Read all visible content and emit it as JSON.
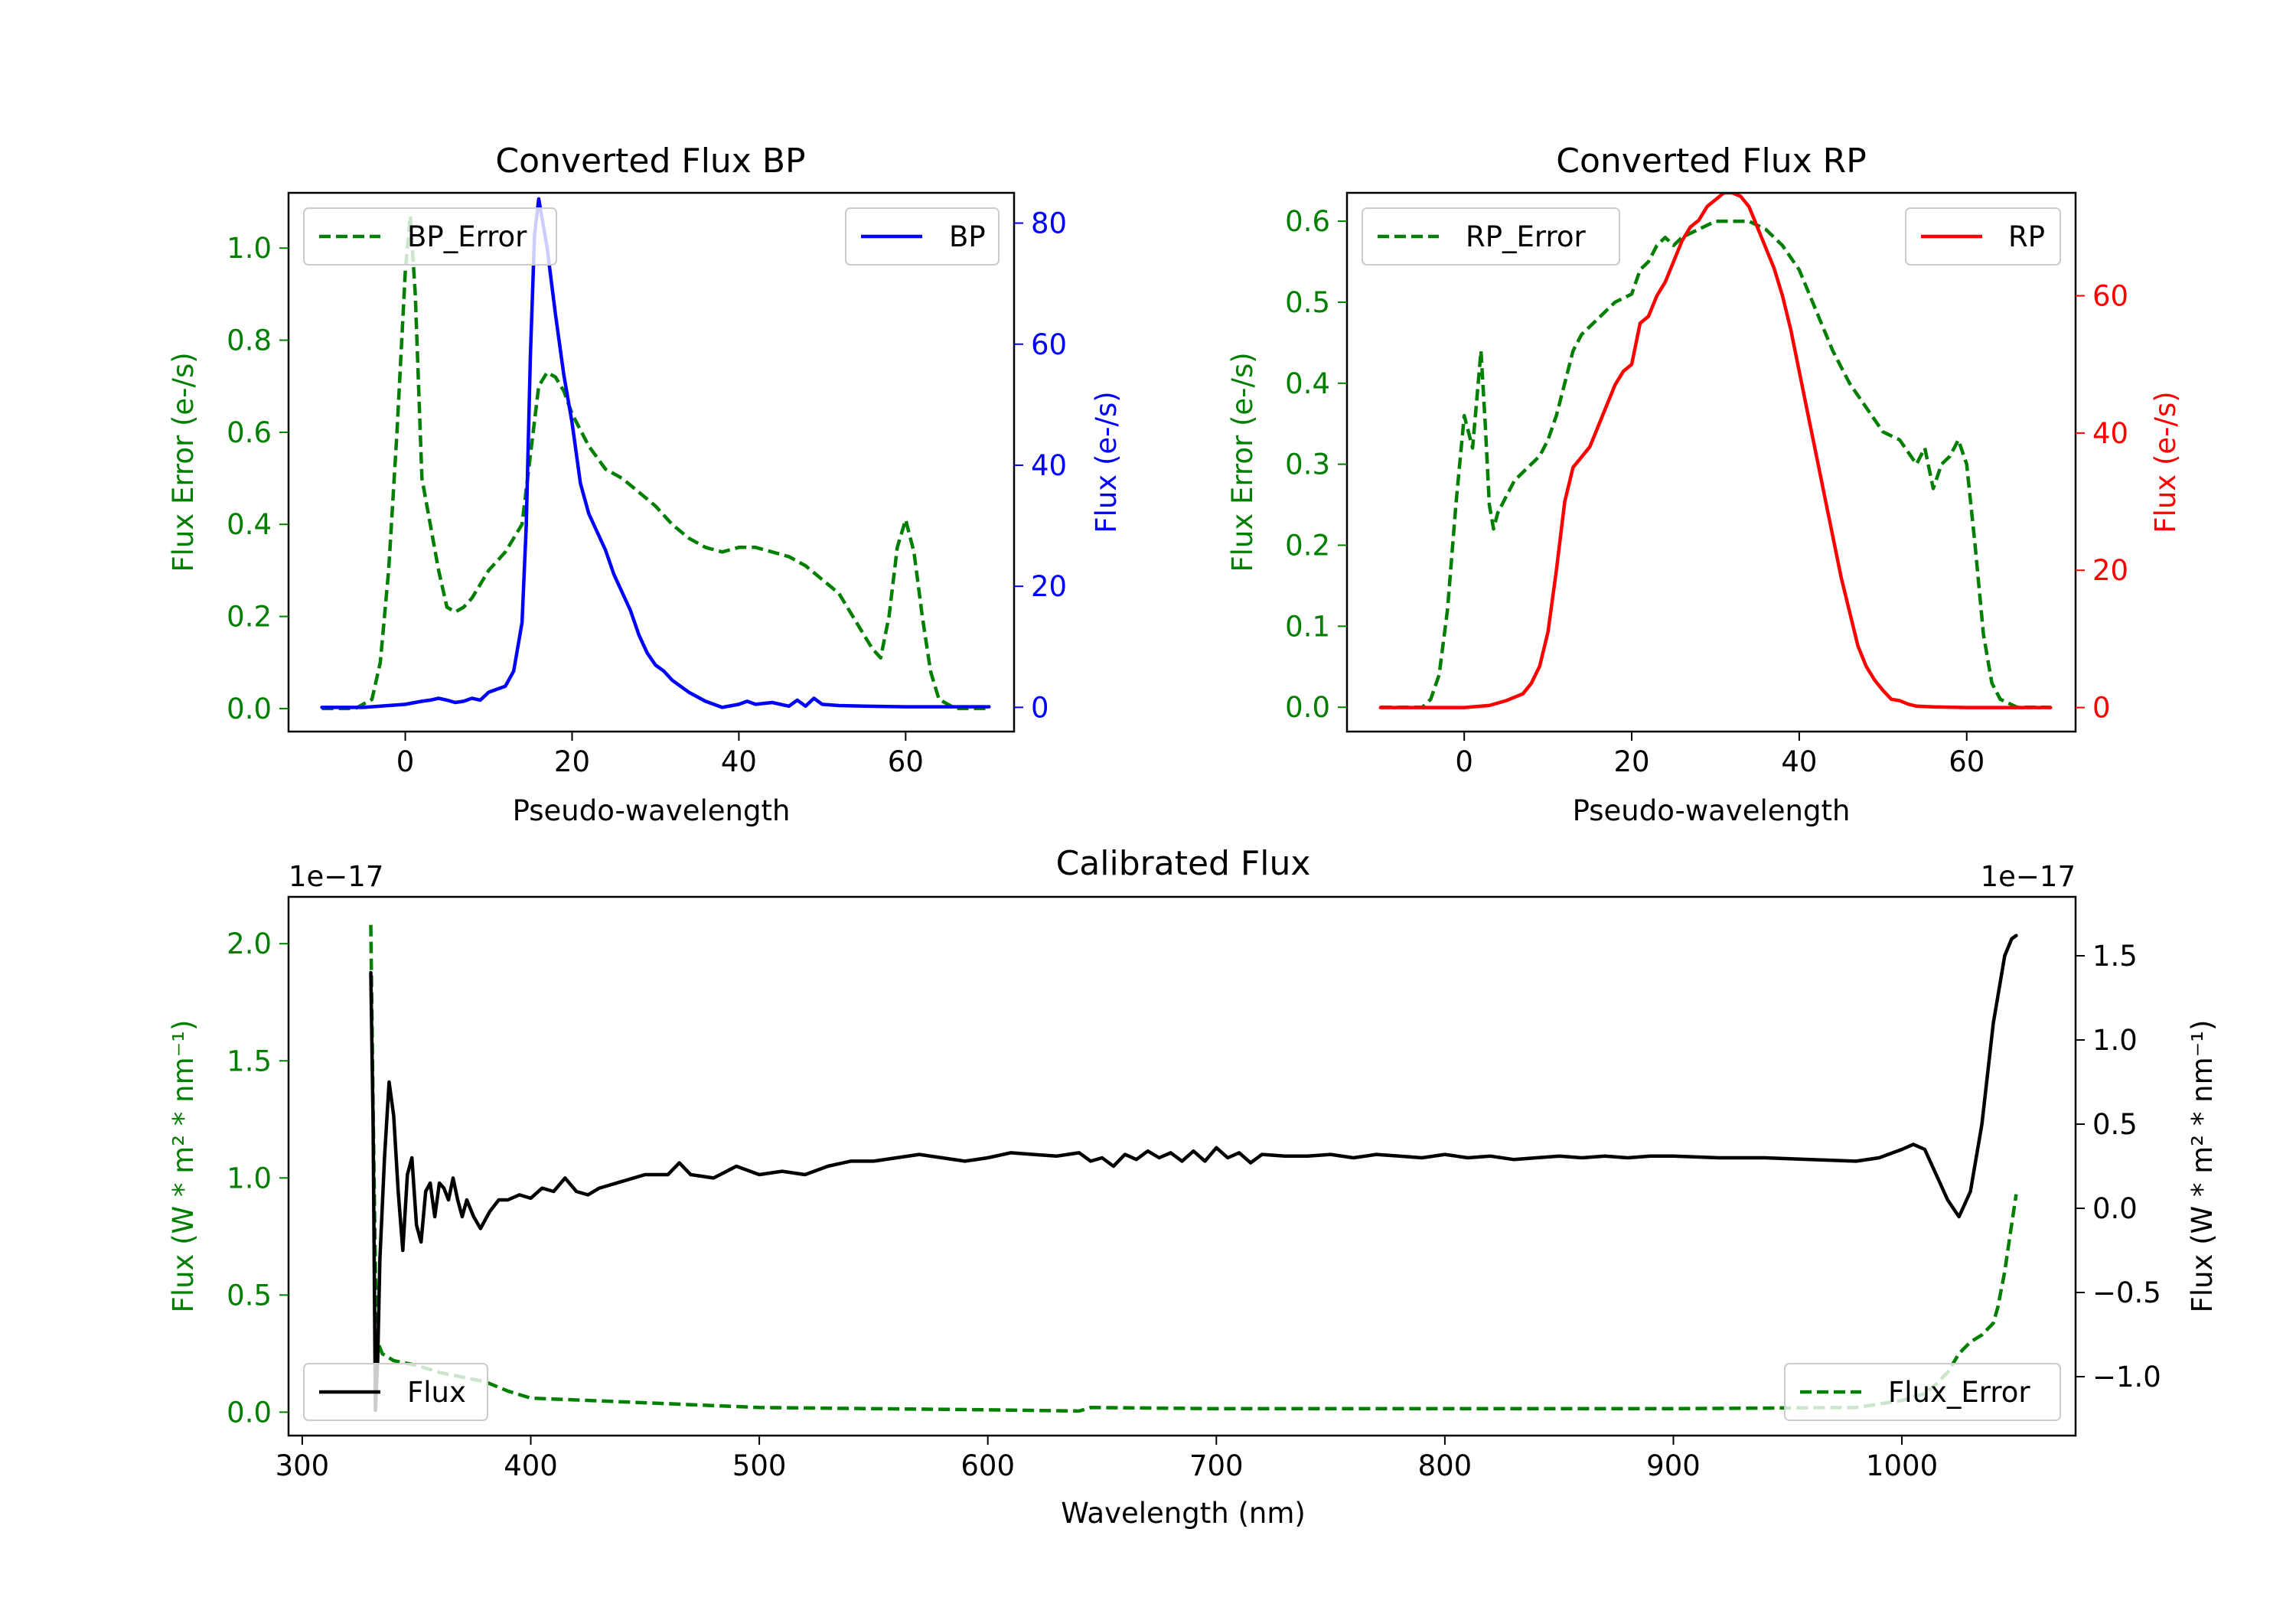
{
  "colors": {
    "error": "#007f00",
    "bp": "#0000ff",
    "rp": "#ff0000",
    "flux": "#000000"
  },
  "chart_data": [
    {
      "type": "line",
      "title": "Converted Flux BP",
      "xlabel": "Pseudo-wavelength",
      "ylabel_left": "Flux Error (e-/s)",
      "ylabel_right": "Flux (e-/s)",
      "xlim": [
        -14,
        73
      ],
      "ylim_left": [
        -0.05,
        1.12
      ],
      "ylim_right": [
        -4,
        85
      ],
      "xticks": [
        "0",
        "20",
        "40",
        "60"
      ],
      "yticks_left": [
        "0.0",
        "0.2",
        "0.4",
        "0.6",
        "0.8",
        "1.0"
      ],
      "yticks_right": [
        "0",
        "20",
        "40",
        "60",
        "80"
      ],
      "legend_left": "BP_Error",
      "legend_right": "BP",
      "series": [
        {
          "name": "BP_Error",
          "axis": "left",
          "style": "dashed",
          "x": [
            -10,
            -6,
            -4,
            -3,
            -2,
            -1,
            0,
            0.6,
            1.2,
            2,
            3,
            4,
            5,
            6,
            7,
            8,
            9,
            10,
            12,
            14,
            15,
            16,
            17,
            18,
            19,
            20,
            22,
            24,
            26,
            28,
            30,
            32,
            34,
            36,
            38,
            40,
            42,
            44,
            46,
            48,
            50,
            52,
            54,
            56,
            57,
            58,
            59,
            60,
            61,
            62,
            63,
            64,
            66,
            70
          ],
          "values": [
            0.0,
            0.0,
            0.02,
            0.1,
            0.3,
            0.6,
            0.95,
            1.07,
            0.9,
            0.5,
            0.4,
            0.3,
            0.22,
            0.21,
            0.22,
            0.24,
            0.27,
            0.3,
            0.34,
            0.4,
            0.55,
            0.7,
            0.73,
            0.72,
            0.69,
            0.64,
            0.57,
            0.52,
            0.5,
            0.47,
            0.44,
            0.4,
            0.37,
            0.35,
            0.34,
            0.35,
            0.35,
            0.34,
            0.33,
            0.31,
            0.28,
            0.25,
            0.19,
            0.13,
            0.11,
            0.2,
            0.35,
            0.41,
            0.34,
            0.2,
            0.08,
            0.02,
            0.0,
            0.0
          ]
        },
        {
          "name": "BP",
          "axis": "right",
          "style": "solid",
          "x": [
            -10,
            -5,
            0,
            2,
            3,
            4,
            5,
            6,
            7,
            8,
            9,
            10,
            11,
            12,
            13,
            14,
            14.5,
            15,
            15.5,
            16,
            17,
            18,
            19,
            20,
            21,
            22,
            23,
            24,
            25,
            26,
            27,
            28,
            29,
            30,
            31,
            32,
            34,
            36,
            38,
            40,
            41,
            42,
            44,
            46,
            47,
            48,
            49,
            50,
            52,
            55,
            60,
            65,
            70
          ],
          "values": [
            0,
            0,
            0.5,
            1,
            1.2,
            1.5,
            1.2,
            0.8,
            1,
            1.5,
            1.2,
            2.5,
            3,
            3.5,
            6,
            14,
            30,
            58,
            78,
            84,
            76,
            65,
            55,
            47,
            37,
            32,
            29,
            26,
            22,
            19,
            16,
            12,
            9,
            7,
            6,
            4.5,
            2.5,
            1,
            0,
            0.5,
            1,
            0.5,
            0.8,
            0.2,
            1.2,
            0.2,
            1.5,
            0.5,
            0.3,
            0.2,
            0.1,
            0.1,
            0.1
          ]
        }
      ]
    },
    {
      "type": "line",
      "title": "Converted Flux RP",
      "xlabel": "Pseudo-wavelength",
      "ylabel_left": "Flux Error (e-/s)",
      "ylabel_right": "Flux (e-/s)",
      "xlim": [
        -14,
        73
      ],
      "ylim_left": [
        -0.03,
        0.635
      ],
      "ylim_right": [
        -3.5,
        75
      ],
      "xticks": [
        "0",
        "20",
        "40",
        "60"
      ],
      "yticks_left": [
        "0.0",
        "0.1",
        "0.2",
        "0.3",
        "0.4",
        "0.5",
        "0.6"
      ],
      "yticks_right": [
        "0",
        "20",
        "40",
        "60"
      ],
      "legend_left": "RP_Error",
      "legend_right": "RP",
      "series": [
        {
          "name": "RP_Error",
          "axis": "left",
          "style": "dashed",
          "x": [
            -10,
            -5,
            -4,
            -3,
            -2,
            -1,
            0,
            0.5,
            1,
            1.5,
            2,
            2.5,
            3,
            3.5,
            4,
            5,
            6,
            7,
            8,
            9,
            10,
            11,
            12,
            13,
            14,
            16,
            18,
            20,
            21,
            22,
            23,
            24,
            25,
            26,
            28,
            30,
            32,
            34,
            36,
            38,
            40,
            42,
            44,
            46,
            48,
            50,
            52,
            54,
            55,
            56,
            57,
            58,
            59,
            60,
            61,
            62,
            63,
            64,
            66,
            70
          ],
          "values": [
            0.0,
            0.0,
            0.01,
            0.04,
            0.12,
            0.25,
            0.36,
            0.34,
            0.32,
            0.38,
            0.44,
            0.35,
            0.25,
            0.22,
            0.24,
            0.26,
            0.28,
            0.29,
            0.3,
            0.31,
            0.33,
            0.36,
            0.4,
            0.44,
            0.46,
            0.48,
            0.5,
            0.51,
            0.54,
            0.55,
            0.57,
            0.58,
            0.57,
            0.58,
            0.59,
            0.6,
            0.6,
            0.6,
            0.59,
            0.57,
            0.54,
            0.49,
            0.44,
            0.4,
            0.37,
            0.34,
            0.33,
            0.3,
            0.32,
            0.27,
            0.3,
            0.31,
            0.33,
            0.3,
            0.2,
            0.09,
            0.03,
            0.01,
            0.0,
            0.0
          ]
        },
        {
          "name": "RP",
          "axis": "right",
          "style": "solid",
          "x": [
            -10,
            -5,
            0,
            3,
            5,
            7,
            8,
            9,
            10,
            11,
            12,
            13,
            14,
            15,
            16,
            17,
            18,
            19,
            20,
            21,
            22,
            23,
            24,
            25,
            26,
            27,
            28,
            29,
            30,
            31,
            32,
            33,
            34,
            35,
            36,
            37,
            38,
            39,
            40,
            41,
            42,
            43,
            44,
            45,
            46,
            47,
            48,
            49,
            50,
            51,
            52,
            53,
            54,
            56,
            60,
            65,
            70
          ],
          "values": [
            0,
            0,
            0,
            0.3,
            1,
            2,
            3.5,
            6,
            11,
            20,
            30,
            35,
            36.5,
            38,
            41,
            44,
            47,
            49,
            50,
            56,
            57,
            60,
            62,
            65,
            68,
            70,
            71,
            73,
            74,
            75,
            75,
            74.5,
            73,
            70,
            67,
            64,
            60,
            55,
            49,
            43,
            37,
            31,
            25,
            19,
            14,
            9,
            6,
            4,
            2.5,
            1.2,
            1,
            0.5,
            0.2,
            0.1,
            0,
            0,
            0
          ]
        }
      ]
    },
    {
      "type": "line",
      "title": "Calibrated Flux",
      "xlabel": "Wavelength (nm)",
      "ylabel_left": "Flux (W * m² * nm⁻¹)",
      "ylabel_right": "Flux (W * m² * nm⁻¹)",
      "offset_left": "1e−17",
      "offset_right": "1e−17",
      "xlim": [
        294,
        1076
      ],
      "ylim_left": [
        -0.1,
        2.2
      ],
      "ylim_right": [
        -1.35,
        1.85
      ],
      "xticks": [
        "300",
        "400",
        "500",
        "600",
        "700",
        "800",
        "900",
        "1000"
      ],
      "yticks_left": [
        "0.0",
        "0.5",
        "1.0",
        "1.5",
        "2.0"
      ],
      "yticks_right": [
        "−1.0",
        "−0.5",
        "0.0",
        "0.5",
        "1.0",
        "1.5"
      ],
      "legend_left": "Flux",
      "legend_right": "Flux_Error",
      "series": [
        {
          "name": "Flux_Error",
          "axis": "left",
          "style": "dashed",
          "x": [
            330,
            331,
            332,
            333,
            335,
            340,
            350,
            360,
            370,
            380,
            390,
            400,
            450,
            500,
            600,
            640,
            645,
            700,
            900,
            980,
            1000,
            1010,
            1015,
            1020,
            1025,
            1030,
            1035,
            1040,
            1042,
            1045,
            1048,
            1050
          ],
          "values": [
            2.08,
            1.3,
            0.6,
            0.3,
            0.25,
            0.22,
            0.2,
            0.17,
            0.15,
            0.13,
            0.09,
            0.06,
            0.04,
            0.02,
            0.01,
            0.005,
            0.02,
            0.015,
            0.015,
            0.02,
            0.05,
            0.08,
            0.12,
            0.17,
            0.25,
            0.3,
            0.33,
            0.38,
            0.45,
            0.6,
            0.8,
            0.93
          ]
        },
        {
          "name": "Flux",
          "axis": "right",
          "style": "solid",
          "x": [
            330,
            331,
            332,
            333,
            334,
            336,
            338,
            340,
            342,
            344,
            346,
            348,
            350,
            352,
            354,
            356,
            358,
            360,
            362,
            364,
            366,
            368,
            370,
            372,
            375,
            378,
            382,
            386,
            390,
            395,
            400,
            405,
            410,
            415,
            420,
            425,
            430,
            440,
            450,
            460,
            465,
            470,
            480,
            490,
            500,
            510,
            520,
            530,
            540,
            550,
            560,
            570,
            580,
            590,
            600,
            610,
            620,
            630,
            640,
            645,
            650,
            655,
            660,
            665,
            670,
            675,
            680,
            685,
            690,
            695,
            700,
            705,
            710,
            715,
            720,
            730,
            740,
            750,
            760,
            770,
            780,
            790,
            800,
            810,
            820,
            830,
            840,
            850,
            860,
            870,
            880,
            890,
            900,
            920,
            940,
            960,
            980,
            990,
            1000,
            1005,
            1010,
            1015,
            1020,
            1025,
            1030,
            1035,
            1040,
            1045,
            1048,
            1050
          ],
          "values": [
            1.4,
            0.5,
            -1.2,
            -0.9,
            -0.3,
            0.3,
            0.75,
            0.55,
            0.1,
            -0.25,
            0.2,
            0.3,
            -0.1,
            -0.2,
            0.1,
            0.15,
            -0.05,
            0.15,
            0.12,
            0.05,
            0.18,
            0.05,
            -0.05,
            0.05,
            -0.05,
            -0.12,
            -0.02,
            0.05,
            0.05,
            0.08,
            0.06,
            0.12,
            0.1,
            0.18,
            0.1,
            0.08,
            0.12,
            0.16,
            0.2,
            0.2,
            0.27,
            0.2,
            0.18,
            0.25,
            0.2,
            0.22,
            0.2,
            0.25,
            0.28,
            0.28,
            0.3,
            0.32,
            0.3,
            0.28,
            0.3,
            0.33,
            0.32,
            0.31,
            0.33,
            0.28,
            0.3,
            0.25,
            0.32,
            0.29,
            0.34,
            0.3,
            0.33,
            0.28,
            0.34,
            0.28,
            0.36,
            0.3,
            0.33,
            0.27,
            0.32,
            0.31,
            0.31,
            0.32,
            0.3,
            0.32,
            0.31,
            0.3,
            0.32,
            0.3,
            0.31,
            0.29,
            0.3,
            0.31,
            0.3,
            0.31,
            0.3,
            0.31,
            0.31,
            0.3,
            0.3,
            0.29,
            0.28,
            0.3,
            0.35,
            0.38,
            0.35,
            0.2,
            0.05,
            -0.05,
            0.1,
            0.5,
            1.1,
            1.5,
            1.6,
            1.62
          ]
        }
      ]
    }
  ]
}
